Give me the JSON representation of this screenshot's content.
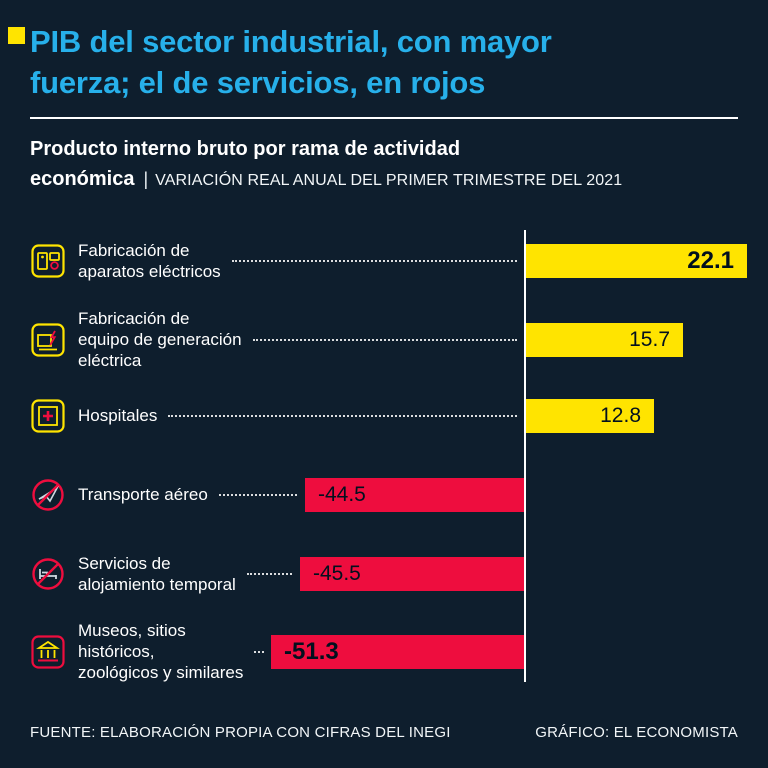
{
  "colors": {
    "background": "#0e1e2d",
    "headline": "#27b0ea",
    "accent_yellow": "#ffe400",
    "accent_red": "#ee0d3e",
    "text": "#ffffff"
  },
  "header": {
    "title_line1": "PIB del sector industrial, con mayor",
    "title_line2": "fuerza; el de servicios, en rojos",
    "subtitle_bold_line1": "Producto interno bruto por rama de actividad",
    "subtitle_bold_line2": "económica",
    "subtitle_separator": "|",
    "subtitle_detail": "VARIACIÓN REAL ANUAL DEL PRIMER TRIMESTRE DEL 2021"
  },
  "chart_data": {
    "type": "bar",
    "orientation": "horizontal",
    "title": "Producto interno bruto por rama de actividad económica",
    "subtitle": "VARIACIÓN REAL ANUAL DEL PRIMER TRIMESTRE DEL 2021",
    "categories": [
      "Fabricación de\naparatos eléctricos",
      "Fabricación de\nequipo de generación\neléctrica",
      "Hospitales",
      "Transporte aéreo",
      "Servicios de\nalojamiento temporal",
      "Museos, sitios\nhistóricos,\nzoológicos y similares"
    ],
    "values": [
      22.1,
      15.7,
      12.8,
      -44.5,
      -45.5,
      -51.3
    ],
    "value_labels": [
      "22.1",
      "15.7",
      "12.8",
      "-44.5",
      "-45.5",
      "-51.3"
    ],
    "icons": [
      "electric-appliances-icon",
      "power-generation-equipment-icon",
      "hospital-icon",
      "air-transport-icon",
      "temporary-lodging-icon",
      "museums-icon"
    ],
    "positive_color": "#ffe400",
    "negative_color": "#ee0d3e",
    "baseline": 0,
    "grid": false,
    "legend": "none"
  },
  "footer": {
    "source": "FUENTE: ELABORACIÓN PROPIA CON CIFRAS DEL INEGI",
    "credit": "GRÁFICO: EL ECONOMISTA"
  }
}
